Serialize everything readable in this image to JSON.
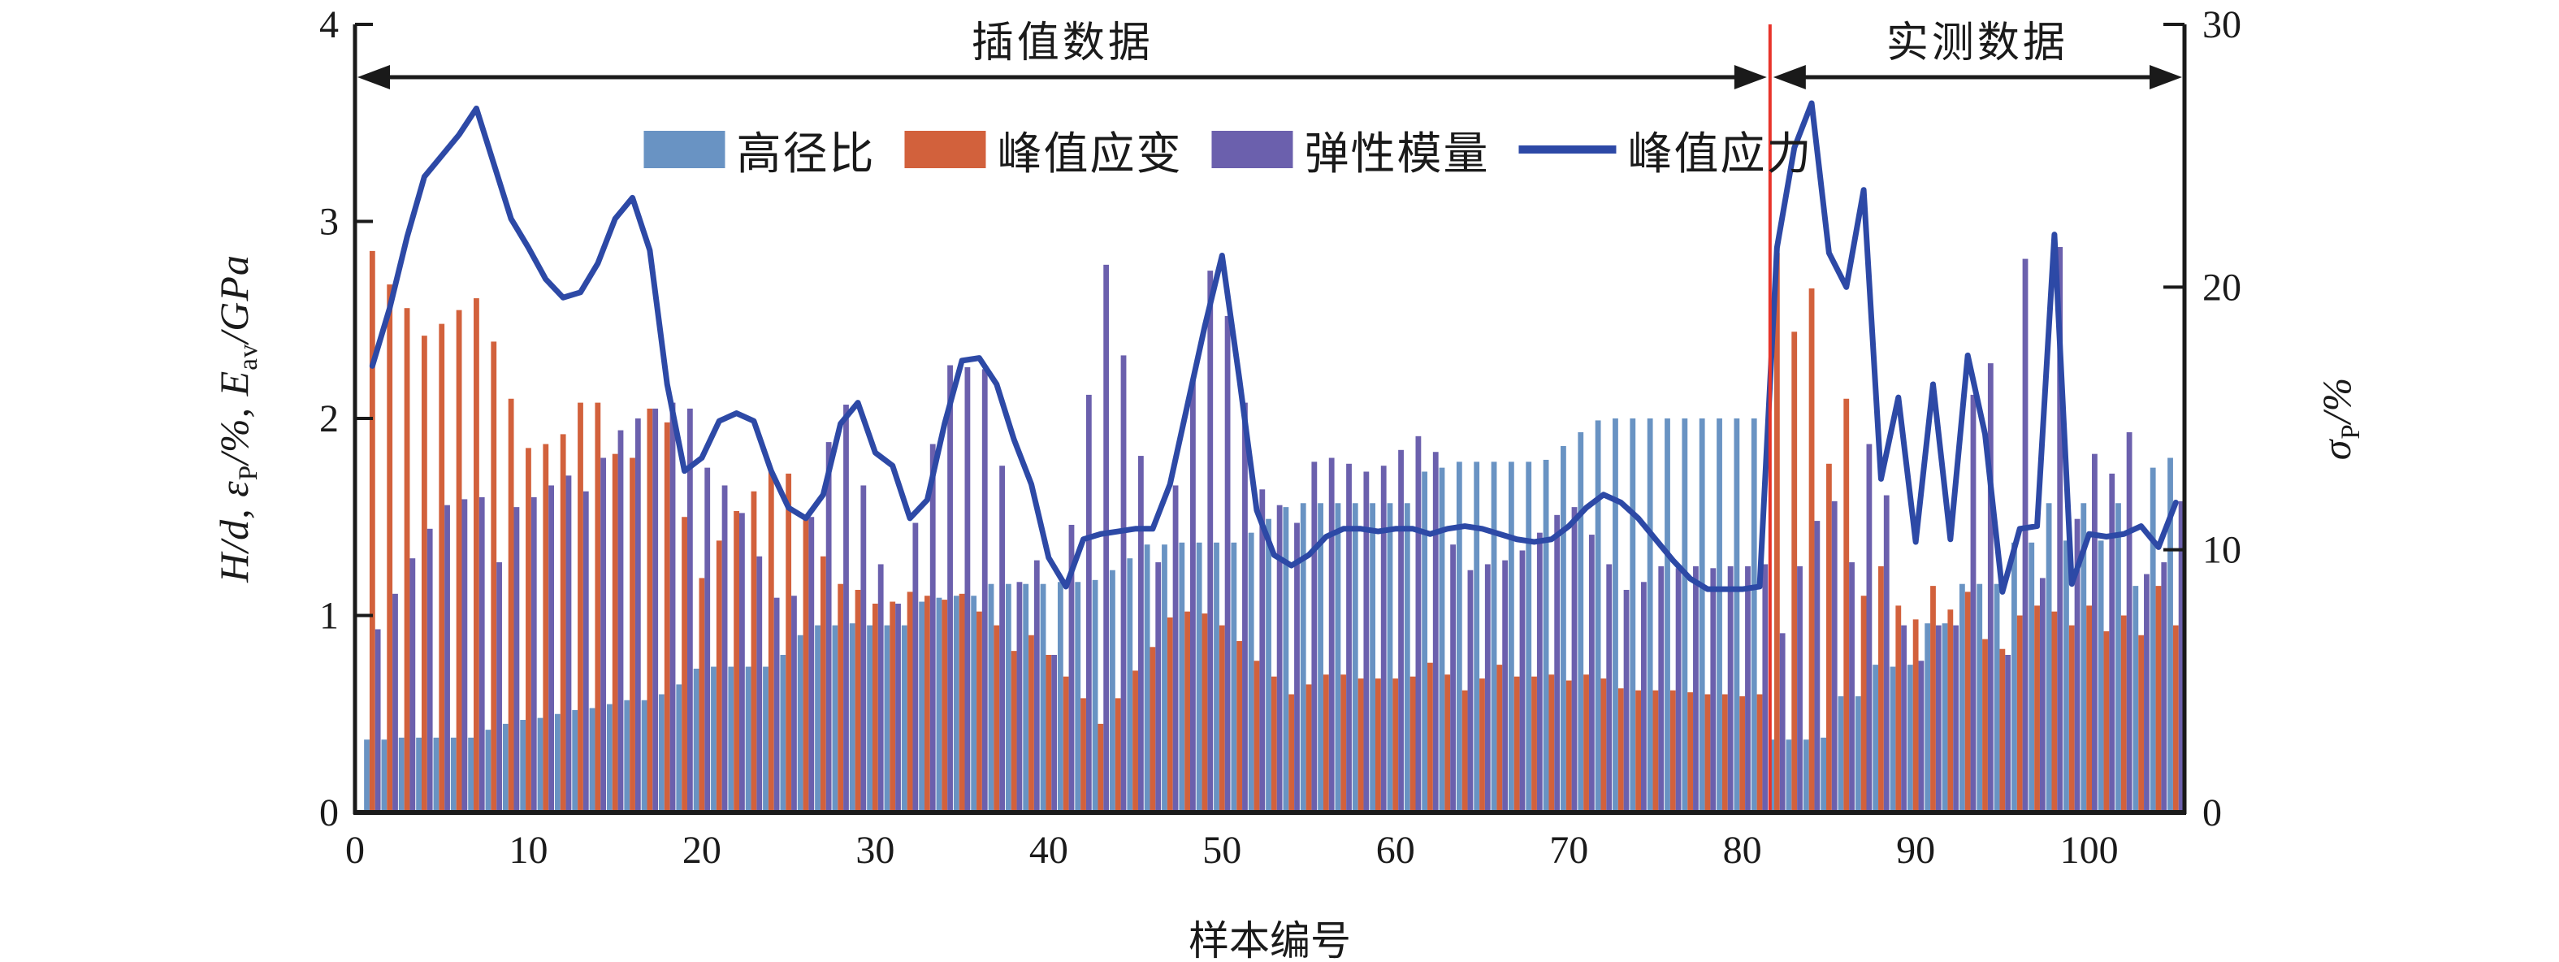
{
  "annotations": {
    "interpolated": "插值数据",
    "measured": "实测数据"
  },
  "axis_titles": {
    "x": "样本编号",
    "y_left": {
      "p1": "H/d, ε",
      "sub1": "P",
      "p2": "/%, E",
      "sub2": "av",
      "p3": "/GPa"
    },
    "y_right": {
      "p1": "σ",
      "sub1": "P",
      "p2": "/%"
    }
  },
  "legend": {
    "items": [
      {
        "label": "高径比",
        "type": "swatch",
        "color": "#6993c3"
      },
      {
        "label": "峰值应变",
        "type": "swatch",
        "color": "#d2613c"
      },
      {
        "label": "弹性模量",
        "type": "swatch",
        "color": "#6b60ad"
      },
      {
        "label": "峰值应力",
        "type": "line",
        "color": "#2d49a6"
      }
    ]
  },
  "colors": {
    "hd": "#6993c3",
    "strain": "#d2613c",
    "modulus": "#6b60ad",
    "stress_line": "#2d49a6",
    "divider": "#e8342b",
    "axis": "#1a1a1a"
  },
  "chart_data": {
    "type": "bar",
    "subtype": "grouped-bars-plus-line",
    "xlabel": "样本编号",
    "ylabel_left": "H/d, εP/%, Eav/GPa",
    "ylabel_right": "σP/%",
    "x_min": 0,
    "x_max": 105.5,
    "x_ticks": [
      0,
      10,
      20,
      30,
      40,
      50,
      60,
      70,
      80,
      90,
      100
    ],
    "y_left_range": [
      0,
      4
    ],
    "y_left_ticks": [
      0,
      1,
      2,
      3,
      4
    ],
    "y_right_range": [
      0,
      30
    ],
    "y_right_ticks": [
      0,
      10,
      20,
      30
    ],
    "grid": false,
    "divider_x": 81.6,
    "region_interpolated": [
      0,
      81.6
    ],
    "region_measured": [
      81.6,
      105.5
    ],
    "samples": 105,
    "series": [
      {
        "name": "高径比",
        "axis": "left",
        "values": [
          0.37,
          0.37,
          0.38,
          0.38,
          0.38,
          0.38,
          0.38,
          0.42,
          0.45,
          0.47,
          0.48,
          0.5,
          0.52,
          0.53,
          0.55,
          0.57,
          0.57,
          0.6,
          0.65,
          0.73,
          0.74,
          0.74,
          0.74,
          0.74,
          0.8,
          0.9,
          0.95,
          0.95,
          0.96,
          0.95,
          0.95,
          0.95,
          1.07,
          1.09,
          1.1,
          1.1,
          1.16,
          1.16,
          1.16,
          1.16,
          1.17,
          1.17,
          1.18,
          1.23,
          1.29,
          1.36,
          1.36,
          1.37,
          1.37,
          1.37,
          1.37,
          1.42,
          1.49,
          1.55,
          1.57,
          1.57,
          1.57,
          1.57,
          1.57,
          1.57,
          1.57,
          1.73,
          1.75,
          1.78,
          1.78,
          1.78,
          1.78,
          1.78,
          1.79,
          1.86,
          1.93,
          1.99,
          2.0,
          2.0,
          2.0,
          2.0,
          2.0,
          2.0,
          2.0,
          2.0,
          2.0,
          0.37,
          0.37,
          0.37,
          0.38,
          0.59,
          0.59,
          0.75,
          0.74,
          0.75,
          0.96,
          0.96,
          1.16,
          1.16,
          1.16,
          1.37,
          1.37,
          1.57,
          1.38,
          1.57,
          1.38,
          1.57,
          1.15,
          1.75,
          1.8
        ]
      },
      {
        "name": "峰值应变",
        "axis": "left",
        "values": [
          2.85,
          2.68,
          2.56,
          2.42,
          2.48,
          2.55,
          2.61,
          2.39,
          2.1,
          1.85,
          1.87,
          1.92,
          2.08,
          2.08,
          1.82,
          1.8,
          2.05,
          1.98,
          1.5,
          1.19,
          1.38,
          1.53,
          1.63,
          1.73,
          1.72,
          1.51,
          1.3,
          1.16,
          1.13,
          1.06,
          1.07,
          1.12,
          1.1,
          1.08,
          1.11,
          1.02,
          0.95,
          0.82,
          0.9,
          0.8,
          0.69,
          0.58,
          0.45,
          0.58,
          0.72,
          0.84,
          0.99,
          1.02,
          1.01,
          0.95,
          0.87,
          0.77,
          0.69,
          0.6,
          0.65,
          0.7,
          0.7,
          0.68,
          0.68,
          0.68,
          0.69,
          0.76,
          0.7,
          0.62,
          0.68,
          0.75,
          0.69,
          0.69,
          0.7,
          0.67,
          0.7,
          0.68,
          0.63,
          0.62,
          0.62,
          0.62,
          0.61,
          0.6,
          0.6,
          0.59,
          0.6,
          2.84,
          2.44,
          2.66,
          1.77,
          2.1,
          1.1,
          1.25,
          1.05,
          0.98,
          1.15,
          1.03,
          1.12,
          0.88,
          0.83,
          1.0,
          1.05,
          1.02,
          0.95,
          1.05,
          0.92,
          1.0,
          0.9,
          1.15,
          0.95
        ]
      },
      {
        "name": "弹性模量",
        "axis": "left",
        "values": [
          0.93,
          1.11,
          1.29,
          1.44,
          1.56,
          1.59,
          1.6,
          1.27,
          1.55,
          1.6,
          1.66,
          1.71,
          1.63,
          1.8,
          1.94,
          2.0,
          2.05,
          2.08,
          2.05,
          1.75,
          1.66,
          1.52,
          1.3,
          1.09,
          1.1,
          1.5,
          1.88,
          2.07,
          1.66,
          1.26,
          1.06,
          1.47,
          1.87,
          2.27,
          2.26,
          2.25,
          1.76,
          1.17,
          1.28,
          0.8,
          1.46,
          2.12,
          2.78,
          2.32,
          1.81,
          1.27,
          1.66,
          2.2,
          2.75,
          2.52,
          2.08,
          1.64,
          1.56,
          1.47,
          1.78,
          1.8,
          1.77,
          1.73,
          1.76,
          1.84,
          1.91,
          1.83,
          1.36,
          1.23,
          1.26,
          1.28,
          1.33,
          1.42,
          1.51,
          1.55,
          1.41,
          1.26,
          1.13,
          1.17,
          1.25,
          1.24,
          1.25,
          1.24,
          1.25,
          1.25,
          1.26,
          0.91,
          1.25,
          1.48,
          1.58,
          1.27,
          1.87,
          1.61,
          0.95,
          0.77,
          0.95,
          0.95,
          2.12,
          2.28,
          0.8,
          2.81,
          1.19,
          2.87,
          1.49,
          1.82,
          1.72,
          1.93,
          1.21,
          1.27,
          1.58
        ]
      },
      {
        "name": "峰值应力",
        "axis": "right",
        "values": [
          17.0,
          19.2,
          21.9,
          24.2,
          25.0,
          25.8,
          26.8,
          24.7,
          22.6,
          21.5,
          20.3,
          19.6,
          19.8,
          20.9,
          22.6,
          23.4,
          21.4,
          16.3,
          13.0,
          13.5,
          14.9,
          15.2,
          14.9,
          13.0,
          11.6,
          11.2,
          12.1,
          14.8,
          15.6,
          13.7,
          13.2,
          11.2,
          11.9,
          14.8,
          17.2,
          17.3,
          16.3,
          14.2,
          12.5,
          9.7,
          8.6,
          10.4,
          10.6,
          10.7,
          10.8,
          10.8,
          12.5,
          15.5,
          18.5,
          21.2,
          16.5,
          11.5,
          9.8,
          9.4,
          9.8,
          10.5,
          10.8,
          10.8,
          10.7,
          10.8,
          10.8,
          10.6,
          10.8,
          10.9,
          10.8,
          10.6,
          10.4,
          10.3,
          10.4,
          10.9,
          11.6,
          12.1,
          11.8,
          11.2,
          10.4,
          9.6,
          8.9,
          8.5,
          8.5,
          8.5,
          8.6,
          21.5,
          25.3,
          27.0,
          21.3,
          20.0,
          23.7,
          12.7,
          15.8,
          10.3,
          16.3,
          10.4,
          17.4,
          14.4,
          8.4,
          10.8,
          10.9,
          22.0,
          8.7,
          10.6,
          10.5,
          10.6,
          10.9,
          10.1,
          11.8
        ]
      }
    ]
  }
}
